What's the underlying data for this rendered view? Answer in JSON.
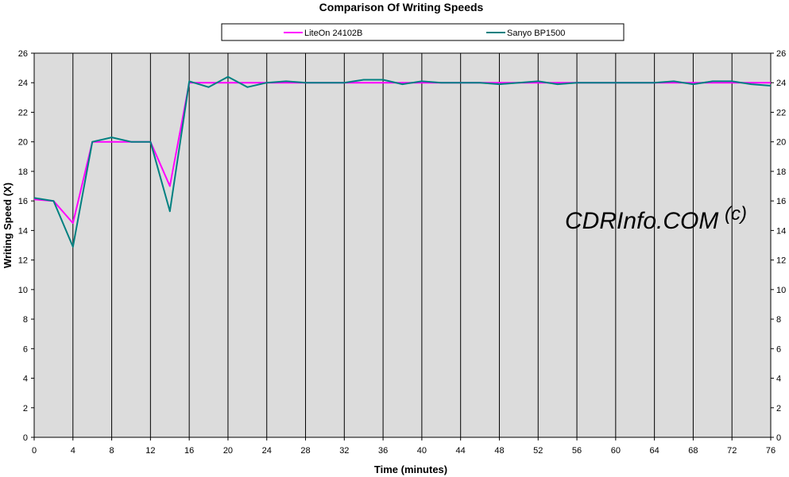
{
  "chart_data": {
    "type": "line",
    "title": "Comparison Of Writing Speeds",
    "xlabel": "Time (minutes)",
    "ylabel": "Writing Speed (X)",
    "xlim": [
      0,
      76
    ],
    "ylim": [
      0,
      26
    ],
    "x_ticks": [
      0,
      4,
      8,
      12,
      16,
      20,
      24,
      28,
      32,
      36,
      40,
      44,
      48,
      52,
      56,
      60,
      64,
      68,
      72,
      76
    ],
    "y_ticks": [
      0,
      2,
      4,
      6,
      8,
      10,
      12,
      14,
      16,
      18,
      20,
      22,
      24,
      26
    ],
    "grid": "vertical lines at x ticks",
    "legend_position": "top-center",
    "plot_background": "#dcdcdc",
    "series": [
      {
        "name": "LiteOn 24102B",
        "color": "#ff00ff",
        "x": [
          0,
          2,
          4,
          6,
          8,
          10,
          12,
          14,
          16,
          18,
          20,
          22,
          24,
          26,
          28,
          30,
          32,
          34,
          36,
          38,
          40,
          42,
          44,
          46,
          48,
          50,
          52,
          54,
          56,
          58,
          60,
          62,
          64,
          66,
          68,
          70,
          72,
          74,
          76
        ],
        "values": [
          16.1,
          16.0,
          14.5,
          20.0,
          20.0,
          20.0,
          20.0,
          17.0,
          24.0,
          24.0,
          24.0,
          24.0,
          24.0,
          24.0,
          24.0,
          24.0,
          24.0,
          24.0,
          24.0,
          24.0,
          24.0,
          24.0,
          24.0,
          24.0,
          24.0,
          24.0,
          24.0,
          24.0,
          24.0,
          24.0,
          24.0,
          24.0,
          24.0,
          24.0,
          24.0,
          24.0,
          24.0,
          24.0,
          24.0
        ]
      },
      {
        "name": "Sanyo BP1500",
        "color": "#008080",
        "x": [
          0,
          2,
          4,
          6,
          8,
          10,
          12,
          14,
          16,
          18,
          20,
          22,
          24,
          26,
          28,
          30,
          32,
          34,
          36,
          38,
          40,
          42,
          44,
          46,
          48,
          50,
          52,
          54,
          56,
          58,
          60,
          62,
          64,
          66,
          68,
          70,
          72,
          74,
          76
        ],
        "values": [
          16.2,
          16.0,
          12.9,
          20.0,
          20.3,
          20.0,
          20.0,
          15.3,
          24.1,
          23.7,
          24.4,
          23.7,
          24.0,
          24.1,
          24.0,
          24.0,
          24.0,
          24.2,
          24.2,
          23.9,
          24.1,
          24.0,
          24.0,
          24.0,
          23.9,
          24.0,
          24.1,
          23.9,
          24.0,
          24.0,
          24.0,
          24.0,
          24.0,
          24.1,
          23.9,
          24.1,
          24.1,
          23.9,
          23.8
        ]
      }
    ]
  },
  "watermark": {
    "text": "CDRInfo.COM",
    "superscript": "(c)"
  }
}
